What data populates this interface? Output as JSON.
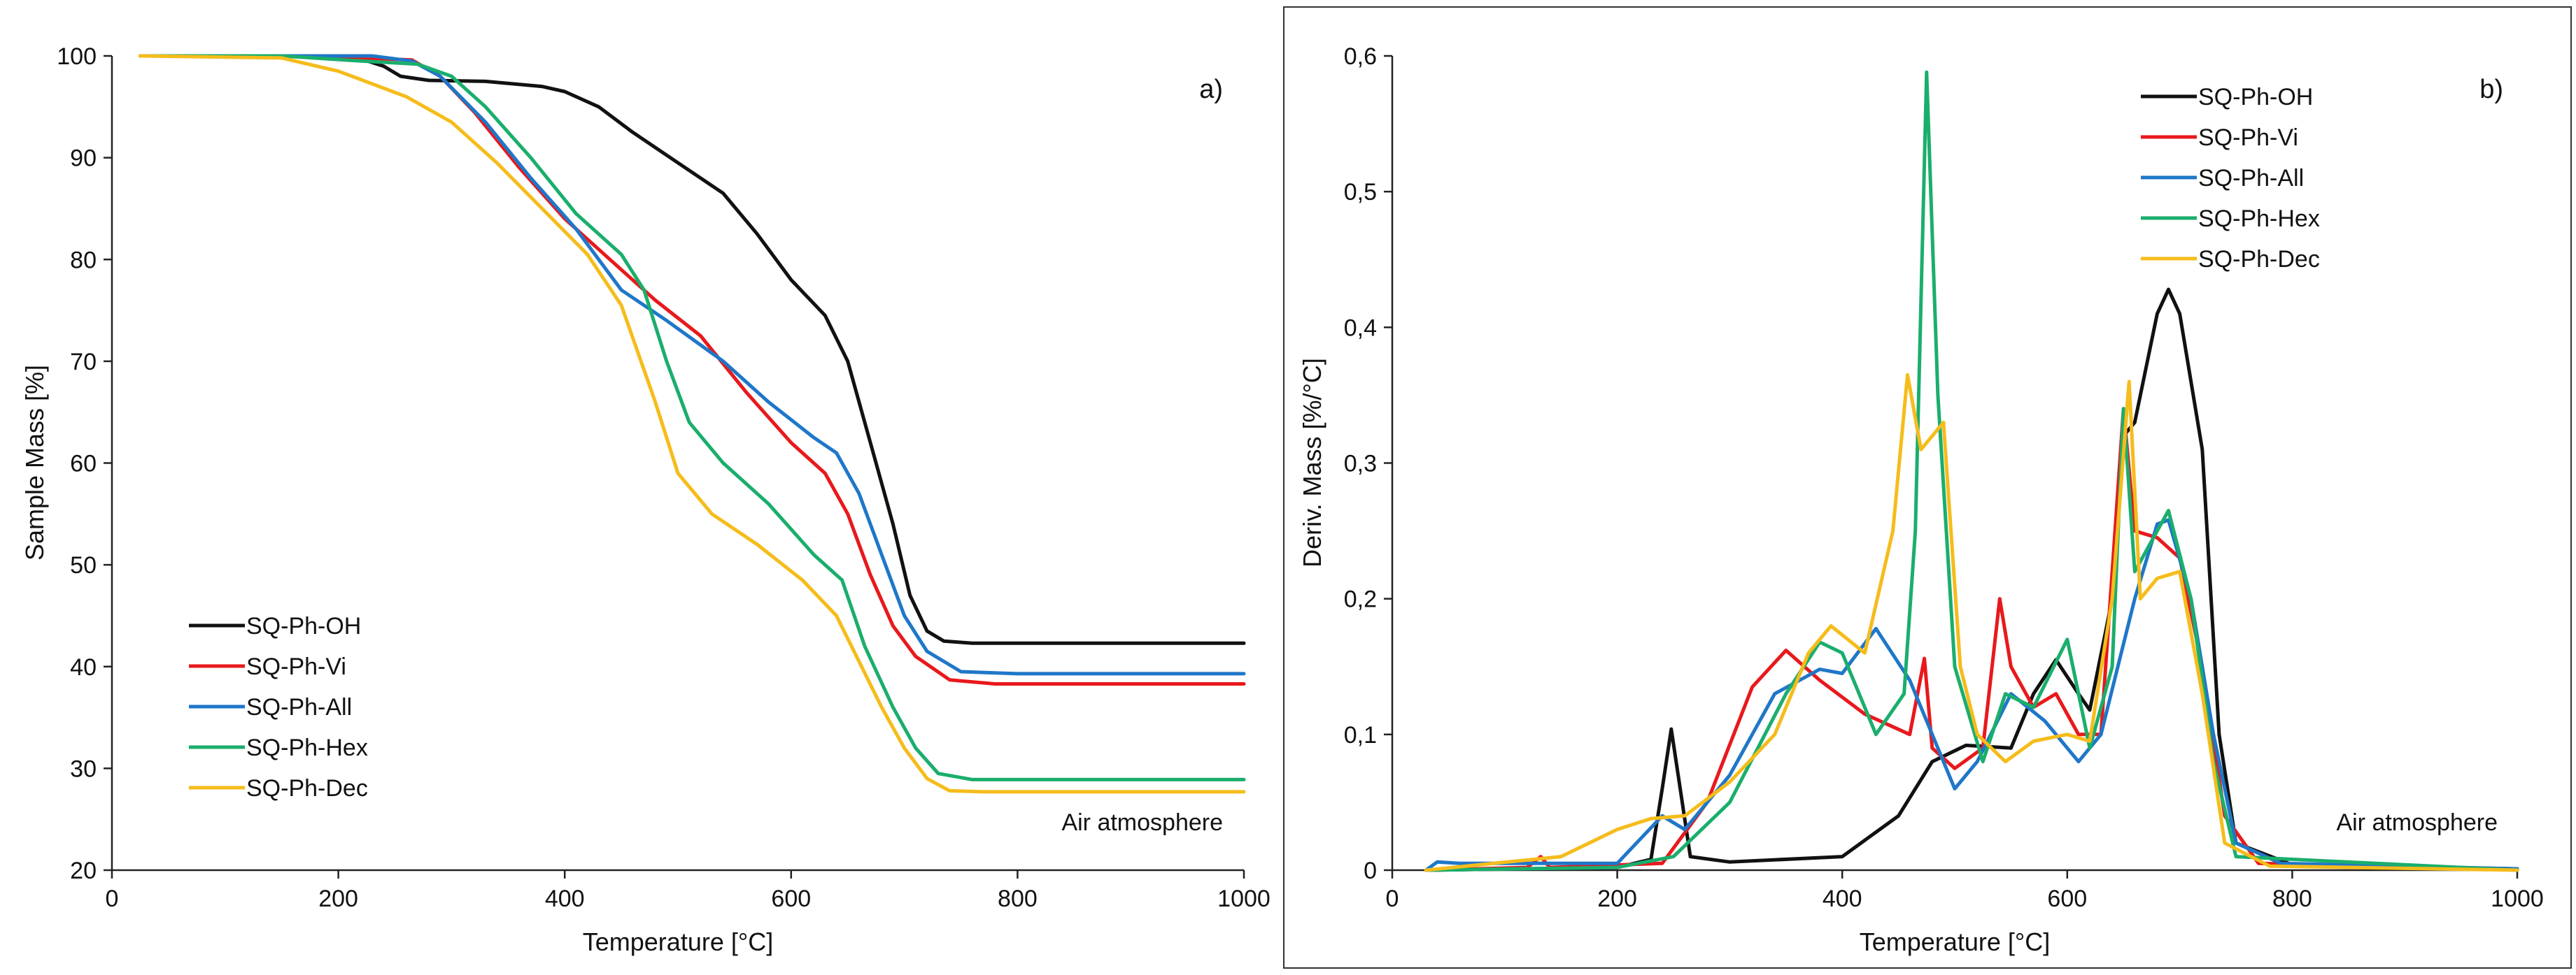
{
  "charts": {
    "a": {
      "type": "line",
      "panel_label": "a)",
      "xlabel": "Temperature [°C]",
      "ylabel": "Sample Mass [%]",
      "xlim": [
        0,
        1000
      ],
      "ylim": [
        20,
        100
      ],
      "xticks": [
        "0",
        "200",
        "400",
        "600",
        "800",
        "1000"
      ],
      "yticks": [
        "20",
        "30",
        "40",
        "50",
        "60",
        "70",
        "80",
        "90",
        "100"
      ],
      "annotation": "Air atmosphere",
      "legend_position": "bottom-left"
    },
    "b": {
      "type": "line",
      "panel_label": "b)",
      "xlabel": "Temperature [°C]",
      "ylabel": "Deriv. Mass [%/°C]",
      "xlim": [
        0,
        1000
      ],
      "ylim": [
        0,
        0.6
      ],
      "xticks": [
        "0",
        "200",
        "400",
        "600",
        "800",
        "1000"
      ],
      "yticks": [
        "0",
        "0,1",
        "0,2",
        "0,3",
        "0,4",
        "0,5",
        "0,6"
      ],
      "annotation": "Air atmosphere",
      "legend_position": "top-right"
    }
  },
  "chart_data": [
    {
      "type": "line",
      "title": "a)",
      "xlabel": "Temperature [°C]",
      "ylabel": "Sample Mass [%]",
      "xlim": [
        0,
        1000
      ],
      "ylim": [
        20,
        100
      ],
      "series": [
        {
          "name": "SQ-Ph-OH",
          "color": "#111111",
          "points": [
            [
              25,
              100
            ],
            [
              150,
              100
            ],
            [
              220,
              99.7
            ],
            [
              240,
              99
            ],
            [
              255,
              98
            ],
            [
              280,
              97.6
            ],
            [
              330,
              97.5
            ],
            [
              380,
              97
            ],
            [
              400,
              96.5
            ],
            [
              430,
              95
            ],
            [
              460,
              92.5
            ],
            [
              500,
              89.5
            ],
            [
              540,
              86.5
            ],
            [
              570,
              82.5
            ],
            [
              600,
              78
            ],
            [
              630,
              74.5
            ],
            [
              650,
              70
            ],
            [
              670,
              62
            ],
            [
              690,
              54
            ],
            [
              705,
              47
            ],
            [
              720,
              43.5
            ],
            [
              735,
              42.5
            ],
            [
              760,
              42.3
            ],
            [
              1000,
              42.3
            ]
          ]
        },
        {
          "name": "SQ-Ph-Vi",
          "color": "#e8191c",
          "points": [
            [
              25,
              100
            ],
            [
              150,
              100
            ],
            [
              220,
              99.8
            ],
            [
              265,
              99.6
            ],
            [
              290,
              98
            ],
            [
              320,
              94.5
            ],
            [
              360,
              89
            ],
            [
              400,
              84
            ],
            [
              440,
              80
            ],
            [
              480,
              76
            ],
            [
              520,
              72.5
            ],
            [
              560,
              67
            ],
            [
              600,
              62
            ],
            [
              630,
              59
            ],
            [
              650,
              55
            ],
            [
              670,
              49
            ],
            [
              690,
              44
            ],
            [
              710,
              41
            ],
            [
              740,
              38.7
            ],
            [
              780,
              38.3
            ],
            [
              1000,
              38.3
            ]
          ]
        },
        {
          "name": "SQ-Ph-All",
          "color": "#1f77c8",
          "points": [
            [
              25,
              100
            ],
            [
              150,
              100
            ],
            [
              230,
              100
            ],
            [
              265,
              99.5
            ],
            [
              290,
              98
            ],
            [
              330,
              93.5
            ],
            [
              370,
              88
            ],
            [
              410,
              83
            ],
            [
              450,
              77
            ],
            [
              490,
              74
            ],
            [
              540,
              70
            ],
            [
              580,
              66
            ],
            [
              620,
              62.5
            ],
            [
              640,
              61
            ],
            [
              660,
              57
            ],
            [
              680,
              51
            ],
            [
              700,
              45
            ],
            [
              720,
              41.5
            ],
            [
              750,
              39.5
            ],
            [
              800,
              39.3
            ],
            [
              1000,
              39.3
            ]
          ]
        },
        {
          "name": "SQ-Ph-Hex",
          "color": "#1aae6c",
          "points": [
            [
              25,
              100
            ],
            [
              150,
              100
            ],
            [
              220,
              99.5
            ],
            [
              270,
              99.2
            ],
            [
              300,
              98
            ],
            [
              330,
              95
            ],
            [
              370,
              90
            ],
            [
              410,
              84.5
            ],
            [
              450,
              80.5
            ],
            [
              470,
              77
            ],
            [
              490,
              70
            ],
            [
              510,
              64
            ],
            [
              540,
              60
            ],
            [
              580,
              56
            ],
            [
              620,
              51
            ],
            [
              645,
              48.5
            ],
            [
              665,
              42
            ],
            [
              690,
              36
            ],
            [
              710,
              32
            ],
            [
              730,
              29.5
            ],
            [
              760,
              28.9
            ],
            [
              1000,
              28.9
            ]
          ]
        },
        {
          "name": "SQ-Ph-Dec",
          "color": "#f5bc1b",
          "points": [
            [
              25,
              100
            ],
            [
              150,
              99.8
            ],
            [
              200,
              98.5
            ],
            [
              260,
              96
            ],
            [
              300,
              93.5
            ],
            [
              340,
              89.5
            ],
            [
              380,
              85
            ],
            [
              420,
              80.5
            ],
            [
              450,
              75.5
            ],
            [
              480,
              66
            ],
            [
              500,
              59
            ],
            [
              530,
              55
            ],
            [
              570,
              52
            ],
            [
              610,
              48.5
            ],
            [
              640,
              45
            ],
            [
              660,
              40.5
            ],
            [
              680,
              36
            ],
            [
              700,
              32
            ],
            [
              720,
              29
            ],
            [
              740,
              27.8
            ],
            [
              770,
              27.7
            ],
            [
              1000,
              27.7
            ]
          ]
        }
      ],
      "annotations": [
        "Air atmosphere"
      ]
    },
    {
      "type": "line",
      "title": "b)",
      "xlabel": "Temperature [°C]",
      "ylabel": "Deriv. Mass [%/°C]",
      "xlim": [
        0,
        1000
      ],
      "ylim": [
        0,
        0.6
      ],
      "series": [
        {
          "name": "SQ-Ph-OH",
          "color": "#111111",
          "points": [
            [
              30,
              0
            ],
            [
              200,
              0.002
            ],
            [
              230,
              0.008
            ],
            [
              240,
              0.06
            ],
            [
              248,
              0.104
            ],
            [
              256,
              0.06
            ],
            [
              265,
              0.01
            ],
            [
              300,
              0.006
            ],
            [
              400,
              0.01
            ],
            [
              450,
              0.04
            ],
            [
              480,
              0.08
            ],
            [
              510,
              0.092
            ],
            [
              550,
              0.09
            ],
            [
              570,
              0.13
            ],
            [
              590,
              0.155
            ],
            [
              610,
              0.13
            ],
            [
              620,
              0.118
            ],
            [
              640,
              0.2
            ],
            [
              650,
              0.32
            ],
            [
              660,
              0.33
            ],
            [
              680,
              0.41
            ],
            [
              690,
              0.428
            ],
            [
              700,
              0.41
            ],
            [
              720,
              0.31
            ],
            [
              735,
              0.1
            ],
            [
              750,
              0.02
            ],
            [
              800,
              0.004
            ],
            [
              1000,
              0.001
            ]
          ]
        },
        {
          "name": "SQ-Ph-Vi",
          "color": "#e8191c",
          "points": [
            [
              30,
              0
            ],
            [
              120,
              0.002
            ],
            [
              132,
              0.01
            ],
            [
              140,
              0.002
            ],
            [
              240,
              0.005
            ],
            [
              280,
              0.05
            ],
            [
              320,
              0.135
            ],
            [
              350,
              0.162
            ],
            [
              380,
              0.14
            ],
            [
              420,
              0.115
            ],
            [
              460,
              0.1
            ],
            [
              473,
              0.156
            ],
            [
              480,
              0.09
            ],
            [
              500,
              0.075
            ],
            [
              525,
              0.09
            ],
            [
              540,
              0.2
            ],
            [
              550,
              0.15
            ],
            [
              570,
              0.12
            ],
            [
              590,
              0.13
            ],
            [
              610,
              0.1
            ],
            [
              630,
              0.1
            ],
            [
              650,
              0.34
            ],
            [
              660,
              0.25
            ],
            [
              680,
              0.245
            ],
            [
              700,
              0.23
            ],
            [
              720,
              0.15
            ],
            [
              740,
              0.04
            ],
            [
              770,
              0.005
            ],
            [
              1000,
              0.001
            ]
          ]
        },
        {
          "name": "SQ-Ph-All",
          "color": "#1f77c8",
          "points": [
            [
              30,
              0
            ],
            [
              40,
              0.006
            ],
            [
              60,
              0.005
            ],
            [
              200,
              0.005
            ],
            [
              240,
              0.04
            ],
            [
              260,
              0.03
            ],
            [
              300,
              0.07
            ],
            [
              340,
              0.13
            ],
            [
              380,
              0.148
            ],
            [
              400,
              0.145
            ],
            [
              430,
              0.178
            ],
            [
              460,
              0.14
            ],
            [
              490,
              0.08
            ],
            [
              500,
              0.06
            ],
            [
              520,
              0.08
            ],
            [
              550,
              0.13
            ],
            [
              580,
              0.11
            ],
            [
              610,
              0.08
            ],
            [
              630,
              0.1
            ],
            [
              660,
              0.2
            ],
            [
              680,
              0.255
            ],
            [
              690,
              0.258
            ],
            [
              710,
              0.2
            ],
            [
              730,
              0.1
            ],
            [
              750,
              0.02
            ],
            [
              790,
              0.005
            ],
            [
              1000,
              0.001
            ]
          ]
        },
        {
          "name": "SQ-Ph-Hex",
          "color": "#1aae6c",
          "points": [
            [
              30,
              0
            ],
            [
              200,
              0.002
            ],
            [
              250,
              0.01
            ],
            [
              300,
              0.05
            ],
            [
              350,
              0.13
            ],
            [
              380,
              0.168
            ],
            [
              400,
              0.16
            ],
            [
              430,
              0.1
            ],
            [
              455,
              0.13
            ],
            [
              465,
              0.25
            ],
            [
              475,
              0.588
            ],
            [
              485,
              0.35
            ],
            [
              500,
              0.15
            ],
            [
              525,
              0.08
            ],
            [
              545,
              0.13
            ],
            [
              570,
              0.12
            ],
            [
              600,
              0.17
            ],
            [
              620,
              0.09
            ],
            [
              640,
              0.15
            ],
            [
              650,
              0.34
            ],
            [
              660,
              0.22
            ],
            [
              690,
              0.265
            ],
            [
              710,
              0.2
            ],
            [
              730,
              0.08
            ],
            [
              750,
              0.01
            ],
            [
              1000,
              0
            ]
          ]
        },
        {
          "name": "SQ-Ph-Dec",
          "color": "#f5bc1b",
          "points": [
            [
              30,
              0
            ],
            [
              150,
              0.01
            ],
            [
              200,
              0.03
            ],
            [
              230,
              0.038
            ],
            [
              260,
              0.04
            ],
            [
              300,
              0.065
            ],
            [
              340,
              0.1
            ],
            [
              370,
              0.16
            ],
            [
              390,
              0.18
            ],
            [
              420,
              0.16
            ],
            [
              445,
              0.25
            ],
            [
              458,
              0.365
            ],
            [
              470,
              0.31
            ],
            [
              490,
              0.33
            ],
            [
              505,
              0.15
            ],
            [
              520,
              0.1
            ],
            [
              545,
              0.08
            ],
            [
              570,
              0.095
            ],
            [
              600,
              0.1
            ],
            [
              620,
              0.095
            ],
            [
              640,
              0.2
            ],
            [
              655,
              0.36
            ],
            [
              665,
              0.2
            ],
            [
              680,
              0.215
            ],
            [
              700,
              0.22
            ],
            [
              720,
              0.13
            ],
            [
              740,
              0.02
            ],
            [
              780,
              0.003
            ],
            [
              1000,
              0
            ]
          ]
        }
      ],
      "annotations": [
        "Air atmosphere"
      ]
    }
  ]
}
